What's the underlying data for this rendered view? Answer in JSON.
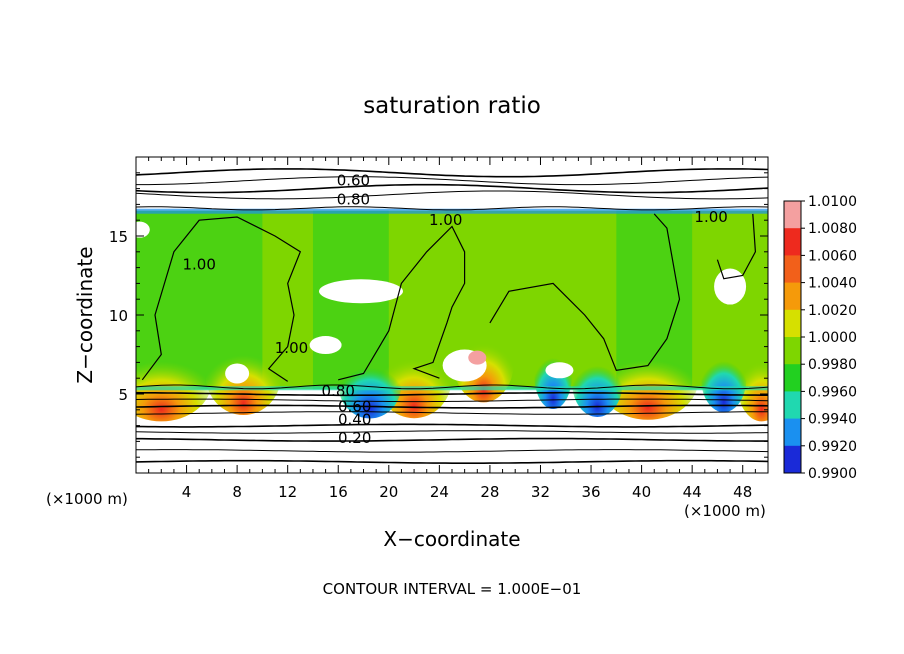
{
  "chart_data": {
    "type": "heatmap",
    "title": "saturation ratio",
    "xlabel": "X−coordinate",
    "ylabel": "Z−coordinate",
    "x_unit_left": "(×1000 m)",
    "x_unit_right": "(×1000 m)",
    "xlim": [
      0,
      50
    ],
    "ylim": [
      0,
      20
    ],
    "x_ticks": [
      4,
      8,
      12,
      16,
      20,
      24,
      28,
      32,
      36,
      40,
      44,
      48
    ],
    "y_ticks": [
      5,
      10,
      15
    ],
    "footer": "CONTOUR INTERVAL = 1.000E−01",
    "colorbar": {
      "levels": [
        "1.0100",
        "1.0080",
        "1.0060",
        "1.0040",
        "1.0020",
        "1.0000",
        "0.9980",
        "0.9960",
        "0.9940",
        "0.9920",
        "0.9900"
      ],
      "colors": [
        "#f4a0a0",
        "#ee2a1e",
        "#f2601a",
        "#f59a0a",
        "#d6e000",
        "#7ed600",
        "#22d020",
        "#20d8b0",
        "#1a90f0",
        "#1a2ad8",
        "#5a1aa8"
      ]
    },
    "contour_labels": [
      {
        "text": "0.60",
        "x": 17.2,
        "z": 18.5
      },
      {
        "text": "0.80",
        "x": 17.2,
        "z": 17.3
      },
      {
        "text": "1.00",
        "x": 24.5,
        "z": 16.0
      },
      {
        "text": "1.00",
        "x": 45.5,
        "z": 16.2
      },
      {
        "text": "1.00",
        "x": 5.0,
        "z": 13.2
      },
      {
        "text": "1.00",
        "x": 12.3,
        "z": 7.9
      },
      {
        "text": "0.80",
        "x": 16.0,
        "z": 5.2
      },
      {
        "text": "0.60",
        "x": 17.3,
        "z": 4.2
      },
      {
        "text": "0.40",
        "x": 17.3,
        "z": 3.4
      },
      {
        "text": "0.20",
        "x": 17.3,
        "z": 2.2
      }
    ],
    "subsaturated_contours_z": [
      0.7,
      1.4,
      2.1,
      2.6,
      3.0,
      3.8,
      4.2,
      4.6,
      5.0,
      17.6,
      18.0,
      18.5,
      19.0
    ],
    "cloud_layer_z": [
      5.3,
      16.6
    ]
  }
}
